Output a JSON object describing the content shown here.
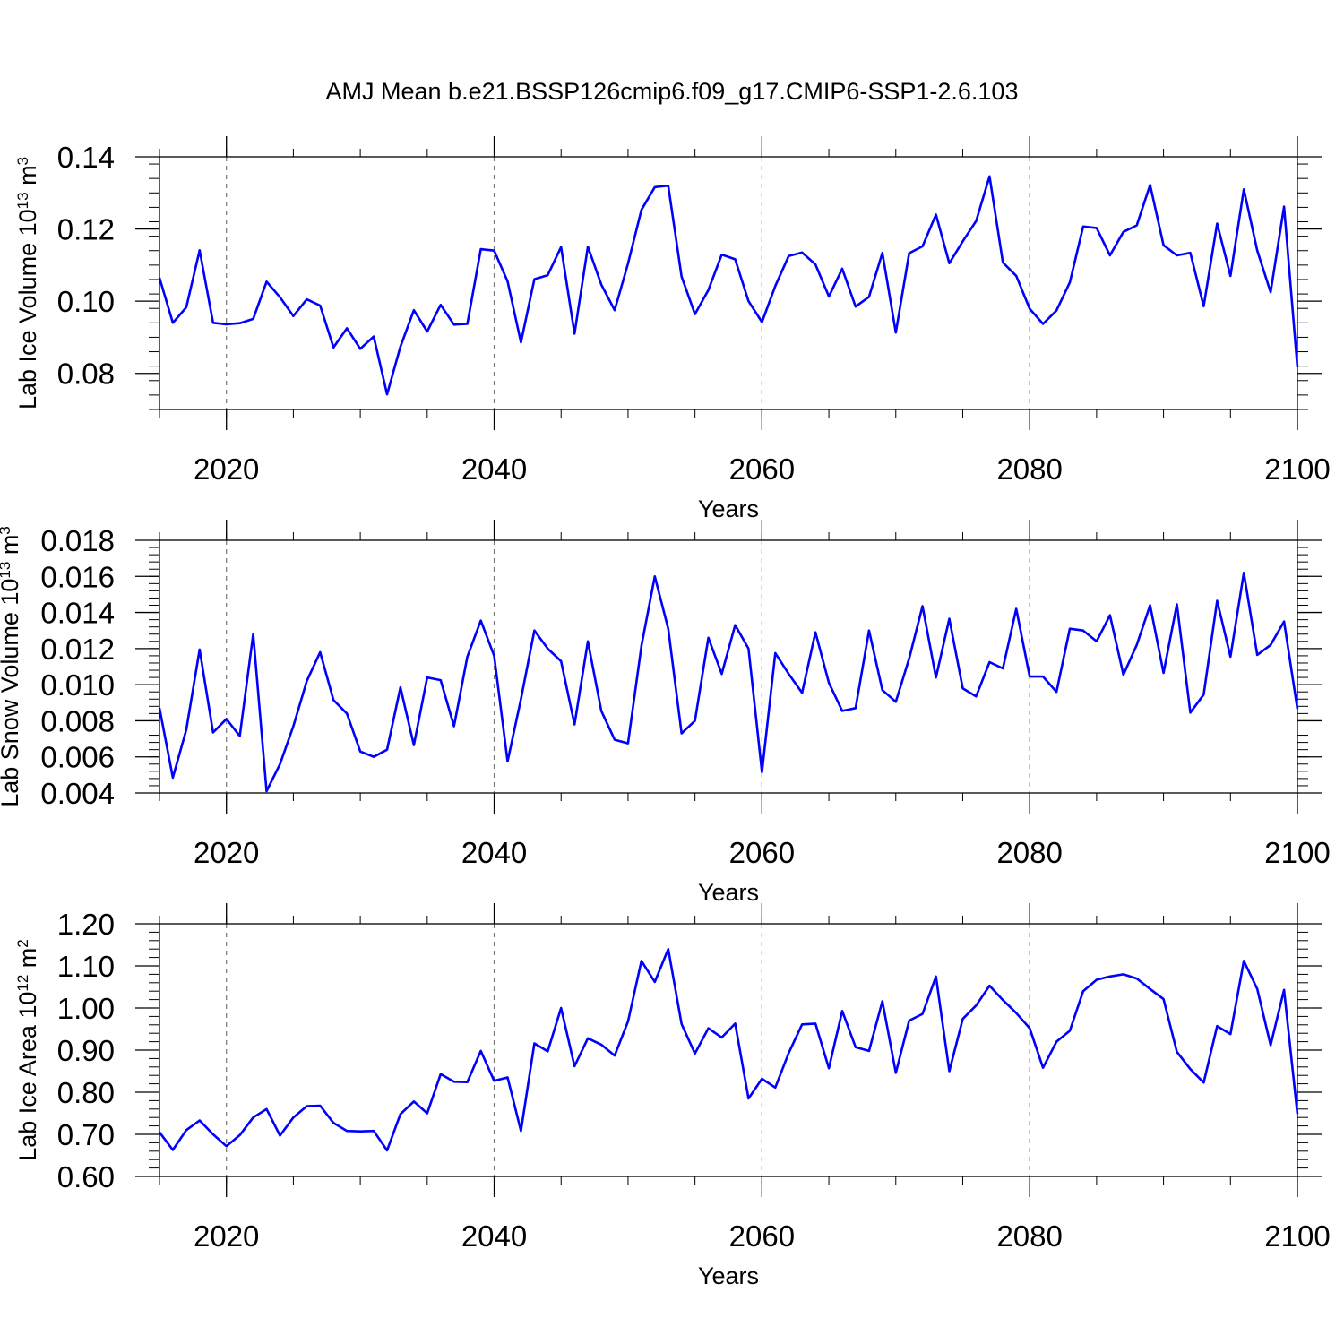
{
  "figure": {
    "title": "AMJ Mean b.e21.BSSP126cmip6.f09_g17.CMIP6-SSP1-2.6.103",
    "line_color": "#0000ff"
  },
  "chart_data": [
    {
      "type": "line",
      "title": "",
      "xlabel": "Years",
      "ylabel": "Lab Ice Volume",
      "yunit_base": "10",
      "yunit_exp": "13",
      "yunit_tail": " m",
      "yunit_tail_exp": "3",
      "xlim": [
        2015,
        2100
      ],
      "ylim": [
        0.07,
        0.14
      ],
      "xticks": [
        2020,
        2040,
        2060,
        2080,
        2100
      ],
      "xtick_labels": [
        "2020",
        "2040",
        "2060",
        "2080",
        "2100"
      ],
      "yticks": [
        0.08,
        0.1,
        0.12,
        0.14
      ],
      "ytick_labels": [
        "0.08",
        "0.10",
        "0.12",
        "0.14"
      ],
      "grid_x": [
        2020,
        2040,
        2060,
        2080
      ],
      "x_start": 2015,
      "series": [
        {
          "name": "Lab Ice Volume",
          "values": [
            0.1065,
            0.094,
            0.0983,
            0.1141,
            0.094,
            0.0936,
            0.0939,
            0.0951,
            0.1054,
            0.1011,
            0.0959,
            0.1005,
            0.0988,
            0.0872,
            0.0925,
            0.0868,
            0.0902,
            0.0742,
            0.0874,
            0.0975,
            0.0916,
            0.099,
            0.0935,
            0.0937,
            0.1144,
            0.114,
            0.1055,
            0.0886,
            0.1061,
            0.1072,
            0.115,
            0.091,
            0.1151,
            0.1046,
            0.0975,
            0.1104,
            0.1253,
            0.1316,
            0.132,
            0.1068,
            0.0964,
            0.1031,
            0.1129,
            0.1116,
            0.1,
            0.0942,
            0.1042,
            0.1125,
            0.1135,
            0.1102,
            0.1013,
            0.109,
            0.0985,
            0.1012,
            0.1134,
            0.0913,
            0.1133,
            0.1152,
            0.124,
            0.1105,
            0.1166,
            0.1222,
            0.1346,
            0.1107,
            0.107,
            0.0979,
            0.0937,
            0.0974,
            0.1052,
            0.1207,
            0.1203,
            0.1127,
            0.1192,
            0.121,
            0.1322,
            0.1155,
            0.1127,
            0.1134,
            0.0986,
            0.1215,
            0.107,
            0.131,
            0.114,
            0.1025,
            0.1262,
            0.0817
          ]
        }
      ]
    },
    {
      "type": "line",
      "title": "",
      "xlabel": "Years",
      "ylabel": "Lab Snow Volume",
      "yunit_base": "10",
      "yunit_exp": "13",
      "yunit_tail": " m",
      "yunit_tail_exp": "3",
      "xlim": [
        2015,
        2100
      ],
      "ylim": [
        0.004,
        0.018
      ],
      "xticks": [
        2020,
        2040,
        2060,
        2080,
        2100
      ],
      "xtick_labels": [
        "2020",
        "2040",
        "2060",
        "2080",
        "2100"
      ],
      "yticks": [
        0.004,
        0.006,
        0.008,
        0.01,
        0.012,
        0.014,
        0.016,
        0.018
      ],
      "ytick_labels": [
        "0.004",
        "0.006",
        "0.008",
        "0.010",
        "0.012",
        "0.014",
        "0.016",
        "0.018"
      ],
      "grid_x": [
        2020,
        2040,
        2060,
        2080
      ],
      "x_start": 2015,
      "series": [
        {
          "name": "Lab Snow Volume",
          "values": [
            0.0087,
            0.00485,
            0.0075,
            0.01195,
            0.00735,
            0.0081,
            0.00715,
            0.0128,
            0.0041,
            0.0056,
            0.0077,
            0.0102,
            0.0118,
            0.00915,
            0.0084,
            0.0063,
            0.006,
            0.0064,
            0.00985,
            0.00665,
            0.0104,
            0.01025,
            0.0077,
            0.01155,
            0.01355,
            0.0116,
            0.00575,
            0.0092,
            0.013,
            0.012,
            0.0113,
            0.0078,
            0.0124,
            0.00855,
            0.00695,
            0.00675,
            0.01215,
            0.016,
            0.0131,
            0.0073,
            0.008,
            0.0126,
            0.0106,
            0.0133,
            0.012,
            0.00515,
            0.01175,
            0.0106,
            0.00955,
            0.0129,
            0.0101,
            0.00855,
            0.0087,
            0.013,
            0.0097,
            0.00905,
            0.01145,
            0.01435,
            0.0104,
            0.01365,
            0.0098,
            0.00935,
            0.01125,
            0.0109,
            0.0142,
            0.01045,
            0.01045,
            0.0096,
            0.0131,
            0.013,
            0.0124,
            0.01385,
            0.01055,
            0.0122,
            0.0144,
            0.01065,
            0.01445,
            0.00845,
            0.00945,
            0.01465,
            0.01155,
            0.0162,
            0.01165,
            0.0122,
            0.0135,
            0.00865
          ]
        }
      ]
    },
    {
      "type": "line",
      "title": "",
      "xlabel": "Years",
      "ylabel": "Lab Ice Area",
      "yunit_base": "10",
      "yunit_exp": "12",
      "yunit_tail": " m",
      "yunit_tail_exp": "2",
      "xlim": [
        2015,
        2100
      ],
      "ylim": [
        0.6,
        1.2
      ],
      "xticks": [
        2020,
        2040,
        2060,
        2080,
        2100
      ],
      "xtick_labels": [
        "2020",
        "2040",
        "2060",
        "2080",
        "2100"
      ],
      "yticks": [
        0.6,
        0.7,
        0.8,
        0.9,
        1.0,
        1.1,
        1.2
      ],
      "ytick_labels": [
        "0.60",
        "0.70",
        "0.80",
        "0.90",
        "1.00",
        "1.10",
        "1.20"
      ],
      "grid_x": [
        2020,
        2040,
        2060,
        2080
      ],
      "x_start": 2015,
      "series": [
        {
          "name": "Lab Ice Area",
          "values": [
            0.705,
            0.663,
            0.71,
            0.733,
            0.7,
            0.672,
            0.698,
            0.74,
            0.76,
            0.697,
            0.74,
            0.767,
            0.768,
            0.727,
            0.708,
            0.707,
            0.708,
            0.662,
            0.748,
            0.778,
            0.75,
            0.843,
            0.825,
            0.824,
            0.898,
            0.827,
            0.835,
            0.708,
            0.916,
            0.897,
            1.0,
            0.862,
            0.928,
            0.913,
            0.887,
            0.968,
            1.112,
            1.062,
            1.14,
            0.962,
            0.892,
            0.952,
            0.93,
            0.963,
            0.785,
            0.832,
            0.811,
            0.893,
            0.961,
            0.963,
            0.857,
            0.993,
            0.907,
            0.898,
            1.016,
            0.846,
            0.97,
            0.986,
            1.075,
            0.85,
            0.974,
            1.006,
            1.053,
            1.019,
            0.988,
            0.952,
            0.858,
            0.92,
            0.946,
            1.04,
            1.067,
            1.075,
            1.08,
            1.07,
            1.045,
            1.021,
            0.896,
            0.855,
            0.823,
            0.957,
            0.938,
            1.112,
            1.045,
            0.912,
            1.043,
            0.748
          ]
        }
      ]
    }
  ]
}
